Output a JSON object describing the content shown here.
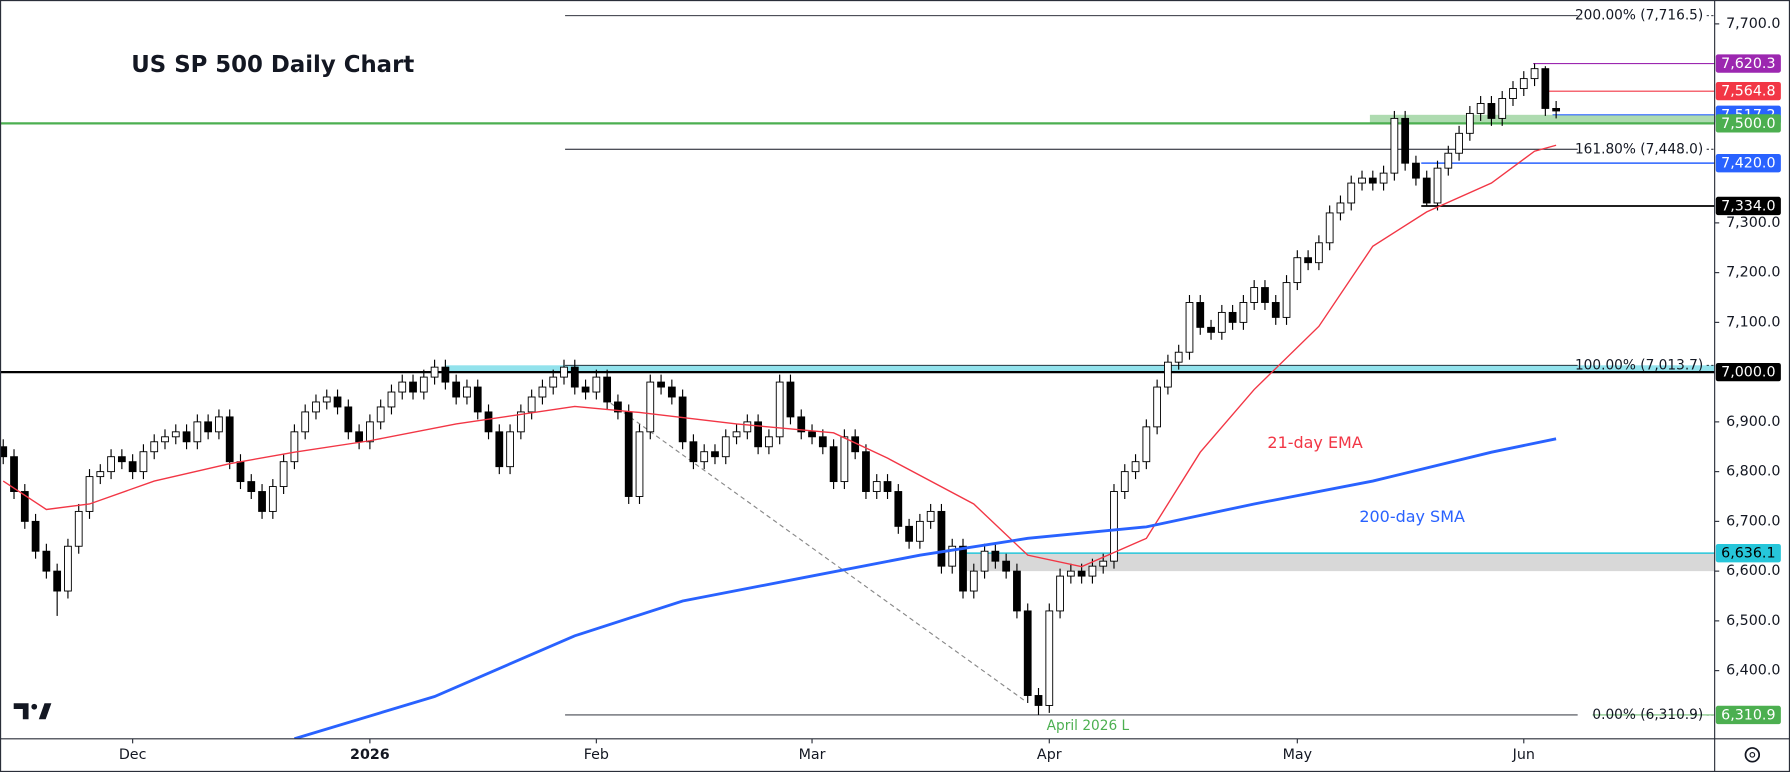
{
  "chart_data": {
    "type": "candlestick",
    "title": "US SP 500 Daily Chart",
    "up_color": "#ffffff",
    "down_color": "#000000",
    "xlim": [
      -0.3,
      158.7
    ],
    "ylim": [
      6263,
      7748
    ],
    "xticks": [
      {
        "value": 12,
        "label": "Dec"
      },
      {
        "value": 34,
        "label": "2026"
      },
      {
        "value": 55,
        "label": "Feb"
      },
      {
        "value": 75,
        "label": "Mar"
      },
      {
        "value": 97,
        "label": "Apr"
      },
      {
        "value": 120,
        "label": "May"
      },
      {
        "value": 141,
        "label": "Jun"
      }
    ],
    "yticks": [
      {
        "value": 7700,
        "label": "7,700.0"
      },
      {
        "value": 7300,
        "label": "7,300.0"
      },
      {
        "value": 7200,
        "label": "7,200.0"
      },
      {
        "value": 7100,
        "label": "7,100.0"
      },
      {
        "value": 6900,
        "label": "6,900.0"
      },
      {
        "value": 6800,
        "label": "6,800.0"
      },
      {
        "value": 6700,
        "label": "6,700.0"
      },
      {
        "value": 6600,
        "label": "6,600.0"
      },
      {
        "value": 6500,
        "label": "6,500.0"
      },
      {
        "value": 6400,
        "label": "6,400.0"
      }
    ],
    "open": [
      6850,
      6830,
      6760,
      6700,
      6640,
      6600,
      6560,
      6650,
      6720,
      6790,
      6800,
      6830,
      6820,
      6800,
      6840,
      6860,
      6870,
      6880,
      6860,
      6900,
      6880,
      6910,
      6820,
      6780,
      6760,
      6720,
      6770,
      6820,
      6880,
      6920,
      6940,
      6950,
      6930,
      6880,
      6860,
      6900,
      6930,
      6960,
      6980,
      6960,
      6990,
      7010,
      6980,
      6950,
      6970,
      6920,
      6880,
      6810,
      6880,
      6920,
      6950,
      6970,
      6990,
      7010,
      6970,
      6960,
      6990,
      6940,
      6920,
      6750,
      6880,
      6980,
      6970,
      6950,
      6860,
      6820,
      6840,
      6830,
      6870,
      6880,
      6900,
      6850,
      6870,
      6980,
      6910,
      6880,
      6870,
      6850,
      6780,
      6870,
      6840,
      6760,
      6780,
      6760,
      6690,
      6660,
      6700,
      6720,
      6610,
      6650,
      6560,
      6600,
      6640,
      6620,
      6600,
      6520,
      6350,
      6330,
      6520,
      6590,
      6600,
      6590,
      6610,
      6620,
      6760,
      6800,
      6820,
      6890,
      6970,
      7020,
      7040,
      7140,
      7090,
      7080,
      7120,
      7100,
      7140,
      7170,
      7140,
      7110,
      7180,
      7230,
      7220,
      7260,
      7320,
      7340,
      7380,
      7390,
      7380,
      7400,
      7510,
      7420,
      7390,
      7340,
      7410,
      7440,
      7480,
      7520,
      7540,
      7510,
      7550,
      7570,
      7590,
      7610,
      7530
    ],
    "high": [
      6865,
      6845,
      6775,
      6715,
      6655,
      6615,
      6665,
      6735,
      6805,
      6815,
      6845,
      6845,
      6835,
      6855,
      6875,
      6885,
      6895,
      6895,
      6915,
      6915,
      6925,
      6925,
      6835,
      6795,
      6775,
      6785,
      6835,
      6895,
      6935,
      6955,
      6965,
      6965,
      6945,
      6895,
      6915,
      6945,
      6975,
      6995,
      6995,
      7005,
      7025,
      7025,
      6995,
      6985,
      6985,
      6935,
      6895,
      6895,
      6935,
      6965,
      6985,
      7005,
      7025,
      7025,
      6985,
      7005,
      7005,
      6955,
      6935,
      6895,
      6995,
      6995,
      6985,
      6965,
      6875,
      6855,
      6855,
      6885,
      6895,
      6915,
      6915,
      6885,
      6995,
      6995,
      6925,
      6895,
      6885,
      6865,
      6885,
      6885,
      6855,
      6795,
      6795,
      6775,
      6705,
      6715,
      6735,
      6735,
      6665,
      6665,
      6615,
      6655,
      6655,
      6635,
      6615,
      6535,
      6365,
      6535,
      6605,
      6615,
      6615,
      6625,
      6635,
      6775,
      6815,
      6835,
      6905,
      6985,
      7035,
      7055,
      7155,
      7155,
      7105,
      7135,
      7135,
      7155,
      7185,
      7185,
      7155,
      7195,
      7245,
      7245,
      7275,
      7335,
      7355,
      7395,
      7405,
      7405,
      7415,
      7525,
      7525,
      7435,
      7405,
      7425,
      7455,
      7495,
      7535,
      7555,
      7555,
      7565,
      7585,
      7605,
      7620.3,
      7615,
      7545
    ],
    "low": [
      6815,
      6745,
      6685,
      6625,
      6585,
      6510,
      6545,
      6635,
      6705,
      6775,
      6785,
      6805,
      6785,
      6785,
      6825,
      6845,
      6855,
      6845,
      6845,
      6865,
      6865,
      6805,
      6765,
      6745,
      6705,
      6705,
      6755,
      6805,
      6865,
      6905,
      6925,
      6915,
      6865,
      6845,
      6845,
      6885,
      6915,
      6945,
      6945,
      6945,
      6975,
      6965,
      6935,
      6935,
      6905,
      6865,
      6795,
      6795,
      6865,
      6905,
      6935,
      6955,
      6975,
      6955,
      6945,
      6945,
      6925,
      6905,
      6735,
      6735,
      6865,
      6955,
      6935,
      6845,
      6805,
      6805,
      6815,
      6815,
      6855,
      6865,
      6835,
      6835,
      6855,
      6895,
      6865,
      6855,
      6835,
      6765,
      6765,
      6825,
      6745,
      6745,
      6745,
      6675,
      6645,
      6645,
      6685,
      6595,
      6595,
      6545,
      6545,
      6585,
      6605,
      6585,
      6505,
      6335,
      6311,
      6315,
      6505,
      6575,
      6575,
      6575,
      6595,
      6605,
      6745,
      6785,
      6805,
      6875,
      6955,
      7005,
      7025,
      7075,
      7065,
      7065,
      7085,
      7085,
      7125,
      7125,
      7095,
      7095,
      7165,
      7205,
      7205,
      7245,
      7305,
      7325,
      7365,
      7365,
      7365,
      7385,
      7405,
      7375,
      7334,
      7325,
      7395,
      7425,
      7465,
      7505,
      7495,
      7495,
      7535,
      7555,
      7575,
      7515,
      7510
    ],
    "close": [
      6830,
      6760,
      6700,
      6640,
      6600,
      6560,
      6650,
      6720,
      6790,
      6800,
      6830,
      6820,
      6800,
      6840,
      6860,
      6870,
      6880,
      6860,
      6900,
      6880,
      6910,
      6820,
      6780,
      6760,
      6720,
      6770,
      6820,
      6880,
      6920,
      6940,
      6950,
      6930,
      6880,
      6860,
      6900,
      6930,
      6960,
      6980,
      6960,
      6990,
      7010,
      6980,
      6950,
      6970,
      6920,
      6880,
      6810,
      6880,
      6920,
      6950,
      6970,
      6990,
      7010,
      6970,
      6960,
      6990,
      6940,
      6920,
      6750,
      6880,
      6980,
      6970,
      6950,
      6860,
      6820,
      6840,
      6830,
      6870,
      6880,
      6900,
      6850,
      6870,
      6980,
      6910,
      6880,
      6870,
      6850,
      6780,
      6870,
      6840,
      6760,
      6780,
      6760,
      6690,
      6660,
      6700,
      6720,
      6610,
      6650,
      6560,
      6600,
      6640,
      6620,
      6600,
      6520,
      6350,
      6330,
      6520,
      6590,
      6600,
      6590,
      6610,
      6620,
      6760,
      6800,
      6820,
      6890,
      6970,
      7020,
      7040,
      7140,
      7090,
      7080,
      7120,
      7100,
      7140,
      7170,
      7140,
      7110,
      7180,
      7230,
      7220,
      7260,
      7320,
      7340,
      7380,
      7390,
      7380,
      7400,
      7510,
      7420,
      7390,
      7340,
      7410,
      7440,
      7480,
      7520,
      7540,
      7510,
      7550,
      7570,
      7590,
      7610,
      7530,
      7525
    ],
    "series": [
      {
        "name": "21-day EMA",
        "color": "#f23645",
        "x": [
          0,
          4,
          8,
          14,
          21,
          27,
          34,
          42,
          53,
          59,
          68,
          77,
          82,
          90,
          95,
          100,
          106,
          111,
          116,
          122,
          127,
          132,
          138,
          142,
          144
        ],
        "values": [
          6781,
          6724,
          6735,
          6781,
          6816,
          6839,
          6862,
          6896,
          6931,
          6919,
          6896,
          6878,
          6827,
          6735,
          6632,
          6609,
          6666,
          6839,
          6965,
          7092,
          7253,
          7322,
          7380,
          7444,
          7456
        ]
      },
      {
        "name": "200-day SMA",
        "color": "#2962ff",
        "x": [
          27,
          40,
          53,
          63,
          74,
          85,
          95,
          106,
          116,
          127,
          138,
          144
        ],
        "values": [
          6263,
          6348,
          6470,
          6540,
          6586,
          6632,
          6666,
          6689,
          6735,
          6781,
          6839,
          6866
        ]
      }
    ],
    "levels": [
      {
        "value": 7620.3,
        "label": "7,620.3",
        "color": "#9c27b0",
        "text_color": "#ffffff"
      },
      {
        "value": 7564.8,
        "label": "7,564.8",
        "color": "#f23645",
        "text_color": "#ffffff"
      },
      {
        "value": 7517.2,
        "label": "7,517.2",
        "color": "#2962ff",
        "text_color": "#ffffff"
      },
      {
        "value": 7500.0,
        "label": "7,500.0",
        "color": "#4caf50",
        "text_color": "#ffffff"
      },
      {
        "value": 7420.0,
        "label": "7,420.0",
        "color": "#2962ff",
        "text_color": "#ffffff"
      },
      {
        "value": 7334.0,
        "label": "7,334.0",
        "color": "#000000",
        "text_color": "#ffffff"
      },
      {
        "value": 7000.0,
        "label": "7,000.0",
        "color": "#000000",
        "text_color": "#ffffff"
      },
      {
        "value": 6636.1,
        "label": "6,636.1",
        "color": "#26c6da",
        "text_color": "#000000"
      },
      {
        "value": 6310.9,
        "label": "6,310.9",
        "color": "#4caf50",
        "text_color": "#ffffff"
      }
    ],
    "fibs": [
      {
        "value": 7716.5,
        "label": "200.00% (7,716.5)"
      },
      {
        "value": 7448.0,
        "label": "161.80% (7,448.0)"
      },
      {
        "value": 7013.7,
        "label": "100.00% (7,013.7)"
      },
      {
        "value": 6310.9,
        "label": "0.00% (6,310.9)"
      }
    ],
    "annotation": "April 2026 L"
  }
}
